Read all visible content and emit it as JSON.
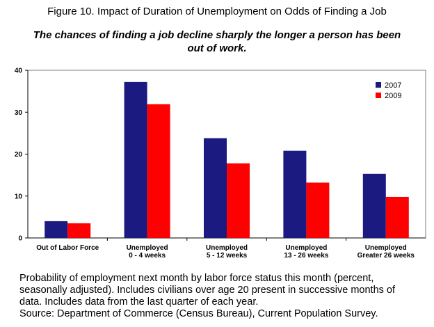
{
  "figure_title": "Figure 10. Impact of Duration of Unemployment on Odds of Finding a Job",
  "subtitle": "The chances of finding a job decline sharply the longer a person has been out of work.",
  "caption": {
    "lines": [
      "Probability of employment next month by labor force status this month (percent,",
      "seasonally adjusted).  Includes civilians over age 20 present in successive months of",
      "data. Includes data from the last quarter of each year.",
      "Source: Department of Commerce (Census Bureau), Current Population Survey."
    ]
  },
  "chart_data": {
    "type": "bar",
    "categories": [
      [
        "Out of Labor Force"
      ],
      [
        "Unemployed",
        "0 - 4 weeks"
      ],
      [
        "Unemployed",
        "5 - 12 weeks"
      ],
      [
        "Unemployed",
        "13 - 26 weeks"
      ],
      [
        "Unemployed",
        "Greater 26 weeks"
      ]
    ],
    "series": [
      {
        "name": "2007",
        "color": "#1a1a80",
        "values": [
          4.0,
          37.2,
          23.8,
          20.8,
          15.3
        ]
      },
      {
        "name": "2009",
        "color": "#ff0000",
        "values": [
          3.5,
          31.9,
          17.8,
          13.2,
          9.8
        ]
      }
    ],
    "ylim": [
      0,
      40
    ],
    "yticks": [
      0,
      10,
      20,
      30,
      40
    ],
    "grid": false,
    "legend_position": "top-right"
  }
}
